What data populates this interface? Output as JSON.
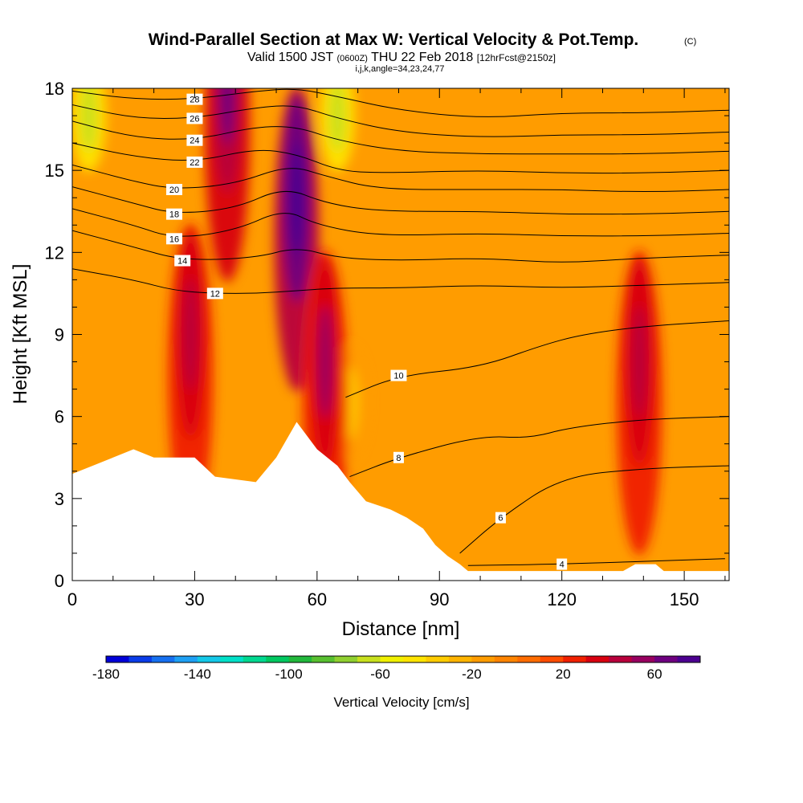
{
  "header": {
    "title": "Wind-Parallel Section at Max W: Vertical Velocity & Pot.Temp.",
    "title_mark": "(C)",
    "sub_valid": "Valid 1500 JST",
    "sub_utc": "(0600Z)",
    "sub_date": "THU 22 Feb 2018",
    "sub_fcst": "[12hrFcst@2150z]",
    "sub_ijk": "i,j,k,angle=34,23,24,77"
  },
  "chart_data": {
    "type": "heatmap",
    "title": "Wind-Parallel Section at Max W: Vertical Velocity & Pot.Temp.",
    "xlabel": "Distance [nm]",
    "ylabel": "Height [Kft MSL]",
    "xlim": [
      0,
      161
    ],
    "ylim": [
      0,
      18
    ],
    "x_ticks": [
      0,
      30,
      60,
      90,
      120,
      150
    ],
    "y_ticks": [
      0,
      3,
      6,
      9,
      12,
      15,
      18
    ],
    "colorbar": {
      "label": "Vertical Velocity [cm/s]",
      "tick_values": [
        -180,
        -140,
        -100,
        -60,
        -20,
        20,
        60
      ],
      "range": [
        -180,
        80
      ],
      "colors": [
        "#0000d8",
        "#0a3ce8",
        "#1670f0",
        "#1ea0f4",
        "#14c8e8",
        "#00e0c8",
        "#00d890",
        "#00c860",
        "#22b83c",
        "#58c030",
        "#90d030",
        "#c8e01e",
        "#f0f000",
        "#ffe400",
        "#ffcc00",
        "#ffb400",
        "#ff9c00",
        "#ff8400",
        "#ff6c00",
        "#ff4c00",
        "#f02000",
        "#d80010",
        "#b8003c",
        "#980060",
        "#6e0080",
        "#4c0090"
      ]
    },
    "terrain_profile": [
      [
        0,
        3.9
      ],
      [
        5,
        4.2
      ],
      [
        10,
        4.5
      ],
      [
        15,
        4.8
      ],
      [
        20,
        4.5
      ],
      [
        30,
        4.5
      ],
      [
        35,
        3.8
      ],
      [
        45,
        3.6
      ],
      [
        50,
        4.5
      ],
      [
        55,
        5.8
      ],
      [
        60,
        4.8
      ],
      [
        65,
        4.2
      ],
      [
        68,
        3.6
      ],
      [
        72,
        2.9
      ],
      [
        78,
        2.6
      ],
      [
        82,
        2.3
      ],
      [
        86,
        1.9
      ],
      [
        89,
        1.3
      ],
      [
        92,
        0.9
      ],
      [
        95,
        0.6
      ],
      [
        97,
        0.35
      ],
      [
        135,
        0.35
      ],
      [
        138,
        0.6
      ],
      [
        143,
        0.6
      ],
      [
        145,
        0.35
      ],
      [
        161,
        0.35
      ]
    ],
    "updraft_cores": [
      {
        "x": 29,
        "y": 9.0,
        "w_cm_s": 40
      },
      {
        "x": 55,
        "y": 14.0,
        "w_cm_s": 80
      },
      {
        "x": 62,
        "y": 8.0,
        "w_cm_s": 50
      },
      {
        "x": 139,
        "y": 8.0,
        "w_cm_s": 40
      },
      {
        "x": 38,
        "y": 18.0,
        "w_cm_s": 60
      }
    ],
    "downdraft_bands": [
      {
        "x": 4,
        "y": 17.0,
        "w_cm_s": -70
      },
      {
        "x": 65,
        "y": 17.0,
        "w_cm_s": -70
      },
      {
        "x": 68,
        "y": 6.5,
        "w_cm_s": -30
      }
    ],
    "theta_contours": [
      {
        "theta": 4,
        "label": "4",
        "points": [
          [
            97,
            0.55
          ],
          [
            120,
            0.6
          ],
          [
            160,
            0.8
          ]
        ]
      },
      {
        "theta": 6,
        "label": "6",
        "points": [
          [
            95,
            1.0
          ],
          [
            105,
            2.3
          ],
          [
            120,
            3.8
          ],
          [
            140,
            4.1
          ],
          [
            161,
            4.2
          ]
        ]
      },
      {
        "theta": 8,
        "label": "8",
        "points": [
          [
            68,
            3.8
          ],
          [
            80,
            4.5
          ],
          [
            100,
            5.3
          ],
          [
            112,
            5.2
          ],
          [
            122,
            5.6
          ],
          [
            140,
            5.9
          ],
          [
            161,
            6.0
          ]
        ]
      },
      {
        "theta": 10,
        "label": "10",
        "points": [
          [
            67,
            6.7
          ],
          [
            80,
            7.5
          ],
          [
            100,
            7.8
          ],
          [
            115,
            8.6
          ],
          [
            125,
            9.0
          ],
          [
            140,
            9.3
          ],
          [
            161,
            9.5
          ]
        ]
      },
      {
        "theta": 12,
        "label": "12",
        "points": [
          [
            0,
            11.4
          ],
          [
            15,
            11.0
          ],
          [
            25,
            10.6
          ],
          [
            35,
            10.5
          ],
          [
            45,
            10.5
          ],
          [
            55,
            10.6
          ],
          [
            65,
            10.7
          ],
          [
            80,
            10.7
          ],
          [
            100,
            10.8
          ],
          [
            120,
            10.7
          ],
          [
            140,
            10.8
          ],
          [
            161,
            10.9
          ]
        ]
      },
      {
        "theta": 14,
        "label": "14",
        "points": [
          [
            0,
            12.8
          ],
          [
            15,
            12.2
          ],
          [
            27,
            11.7
          ],
          [
            45,
            11.8
          ],
          [
            55,
            12.2
          ],
          [
            65,
            11.8
          ],
          [
            80,
            11.7
          ],
          [
            100,
            11.8
          ],
          [
            120,
            11.6
          ],
          [
            140,
            11.8
          ],
          [
            161,
            11.9
          ]
        ]
      },
      {
        "theta": 16,
        "label": "16",
        "points": [
          [
            0,
            13.6
          ],
          [
            15,
            13.0
          ],
          [
            25,
            12.5
          ],
          [
            40,
            12.8
          ],
          [
            52,
            13.6
          ],
          [
            60,
            13.0
          ],
          [
            75,
            12.6
          ],
          [
            100,
            12.7
          ],
          [
            120,
            12.6
          ],
          [
            140,
            12.6
          ],
          [
            161,
            12.7
          ]
        ]
      },
      {
        "theta": 18,
        "label": "18",
        "points": [
          [
            0,
            14.4
          ],
          [
            15,
            13.8
          ],
          [
            25,
            13.4
          ],
          [
            40,
            13.6
          ],
          [
            52,
            14.4
          ],
          [
            62,
            13.8
          ],
          [
            75,
            13.5
          ],
          [
            100,
            13.5
          ],
          [
            120,
            13.4
          ],
          [
            140,
            13.4
          ],
          [
            161,
            13.5
          ]
        ]
      },
      {
        "theta": 20,
        "label": "20",
        "points": [
          [
            0,
            15.2
          ],
          [
            15,
            14.6
          ],
          [
            25,
            14.3
          ],
          [
            40,
            14.5
          ],
          [
            53,
            15.2
          ],
          [
            62,
            14.8
          ],
          [
            75,
            14.3
          ],
          [
            100,
            14.3
          ],
          [
            120,
            14.3
          ],
          [
            140,
            14.2
          ],
          [
            161,
            14.3
          ]
        ]
      },
      {
        "theta": 22,
        "label": "22",
        "points": [
          [
            0,
            16.0
          ],
          [
            15,
            15.5
          ],
          [
            30,
            15.3
          ],
          [
            45,
            15.8
          ],
          [
            55,
            15.6
          ],
          [
            65,
            15.0
          ],
          [
            75,
            14.9
          ],
          [
            100,
            15.0
          ],
          [
            120,
            14.9
          ],
          [
            140,
            14.9
          ],
          [
            161,
            15.0
          ]
        ]
      },
      {
        "theta": 24,
        "label": "24",
        "points": [
          [
            0,
            16.8
          ],
          [
            15,
            16.2
          ],
          [
            30,
            16.1
          ],
          [
            45,
            16.6
          ],
          [
            55,
            16.6
          ],
          [
            65,
            16.1
          ],
          [
            80,
            15.7
          ],
          [
            100,
            15.6
          ],
          [
            120,
            15.6
          ],
          [
            140,
            15.6
          ],
          [
            161,
            15.7
          ]
        ]
      },
      {
        "theta": 26,
        "label": "26",
        "points": [
          [
            0,
            17.4
          ],
          [
            15,
            16.9
          ],
          [
            30,
            16.9
          ],
          [
            45,
            17.3
          ],
          [
            55,
            17.4
          ],
          [
            65,
            16.9
          ],
          [
            80,
            16.4
          ],
          [
            100,
            16.2
          ],
          [
            120,
            16.3
          ],
          [
            140,
            16.3
          ],
          [
            161,
            16.4
          ]
        ]
      },
      {
        "theta": 28,
        "label": "28",
        "points": [
          [
            0,
            17.9
          ],
          [
            15,
            17.6
          ],
          [
            30,
            17.6
          ],
          [
            45,
            17.9
          ],
          [
            55,
            18.0
          ],
          [
            65,
            17.7
          ],
          [
            80,
            17.2
          ],
          [
            100,
            16.9
          ],
          [
            120,
            17.1
          ],
          [
            140,
            17.1
          ],
          [
            161,
            17.2
          ]
        ]
      }
    ]
  }
}
